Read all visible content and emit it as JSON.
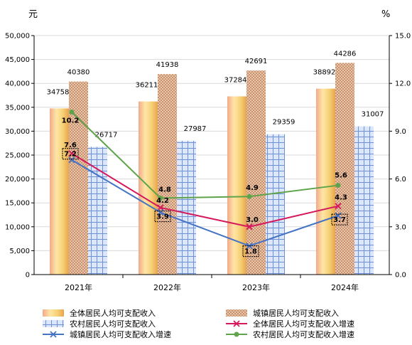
{
  "chart_data": {
    "type": "bar",
    "left_unit": "元",
    "right_unit": "%",
    "categories": [
      "2021年",
      "2022年",
      "2023年",
      "2024年"
    ],
    "left_axis": {
      "ylim": [
        0,
        50000
      ],
      "ticks": [
        "0",
        "5,000",
        "10,000",
        "15,000",
        "20,000",
        "25,000",
        "30,000",
        "35,000",
        "40,000",
        "45,000",
        "50,000"
      ]
    },
    "right_axis": {
      "ylim": [
        0,
        15
      ],
      "ticks": [
        "0.0",
        "3.0",
        "6.0",
        "9.0",
        "12.0",
        "15.0"
      ]
    },
    "bar_series": [
      {
        "name": "全体居民人均可支配收入",
        "values": [
          34758,
          36211,
          37284,
          38892
        ],
        "labels": [
          "34758",
          "36211",
          "37284",
          "38892"
        ]
      },
      {
        "name": "城镇居民人均可支配收入",
        "values": [
          40380,
          41938,
          42691,
          44286
        ],
        "labels": [
          "40380",
          "41938",
          "42691",
          "44286"
        ]
      },
      {
        "name": "农村居民人均可支配收入",
        "values": [
          26717,
          27987,
          29359,
          31007
        ],
        "labels": [
          "26717",
          "27987",
          "29359",
          "31007"
        ]
      }
    ],
    "line_series": [
      {
        "name": "全体居民人均可支配收入增速",
        "values": [
          7.6,
          4.2,
          3.0,
          4.3
        ],
        "labels": [
          "7.6",
          "4.2",
          "3.0",
          "4.3"
        ],
        "color": "#d6185c",
        "marker": "x"
      },
      {
        "name": "城镇居民人均可支配收入增速",
        "values": [
          7.2,
          3.9,
          1.8,
          3.7
        ],
        "labels": [
          "7.2",
          "3.9",
          "1.8",
          "3.7"
        ],
        "color": "#4472c4",
        "marker": "x"
      },
      {
        "name": "农村居民人均可支配收入增速",
        "values": [
          10.2,
          4.8,
          4.9,
          5.6
        ],
        "labels": [
          "10.2",
          "4.8",
          "4.9",
          "5.6"
        ],
        "color": "#5fa34b",
        "marker": "dot"
      }
    ],
    "legend_position": "bottom"
  }
}
